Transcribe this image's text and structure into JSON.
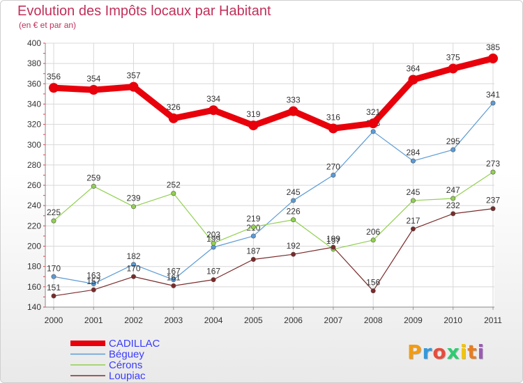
{
  "chart_data": {
    "type": "line",
    "title": "Evolution des Impôts locaux par Habitant",
    "subtitle": "(en € et par an)",
    "x": [
      "2000",
      "2001",
      "2002",
      "2003",
      "2004",
      "2005",
      "2006",
      "2007",
      "2008",
      "2009",
      "2010",
      "2011"
    ],
    "ylim": [
      140,
      400
    ],
    "yticks": [
      140,
      160,
      180,
      200,
      220,
      240,
      260,
      280,
      300,
      320,
      340,
      360,
      380,
      400
    ],
    "grid": true,
    "legend": "bottom-left",
    "series": [
      {
        "name": "CADILLAC",
        "color": "#e8000b",
        "values": [
          356,
          354,
          357,
          326,
          334,
          319,
          333,
          316,
          321,
          364,
          375,
          385
        ]
      },
      {
        "name": "Béguey",
        "color": "#5b9bd5",
        "values": [
          170,
          163,
          182,
          167,
          199,
          210,
          245,
          270,
          313,
          284,
          295,
          341
        ]
      },
      {
        "name": "Cérons",
        "color": "#92d050",
        "values": [
          225,
          259,
          239,
          252,
          203,
          219,
          226,
          197,
          206,
          245,
          247,
          273
        ]
      },
      {
        "name": "Loupiac",
        "color": "#7a2a2a",
        "values": [
          151,
          157,
          170,
          161,
          167,
          187,
          192,
          199,
          156,
          217,
          232,
          237
        ]
      }
    ]
  },
  "legend_text_color": "#3a3aff",
  "logo": {
    "letters": [
      "P",
      "r",
      "o",
      "x",
      "i",
      "t",
      "i"
    ],
    "colors": [
      "#f39c12",
      "#3498db",
      "#e74c3c",
      "#2ecc71",
      "#f1c40f",
      "#e67e22",
      "#9b59b6"
    ]
  }
}
